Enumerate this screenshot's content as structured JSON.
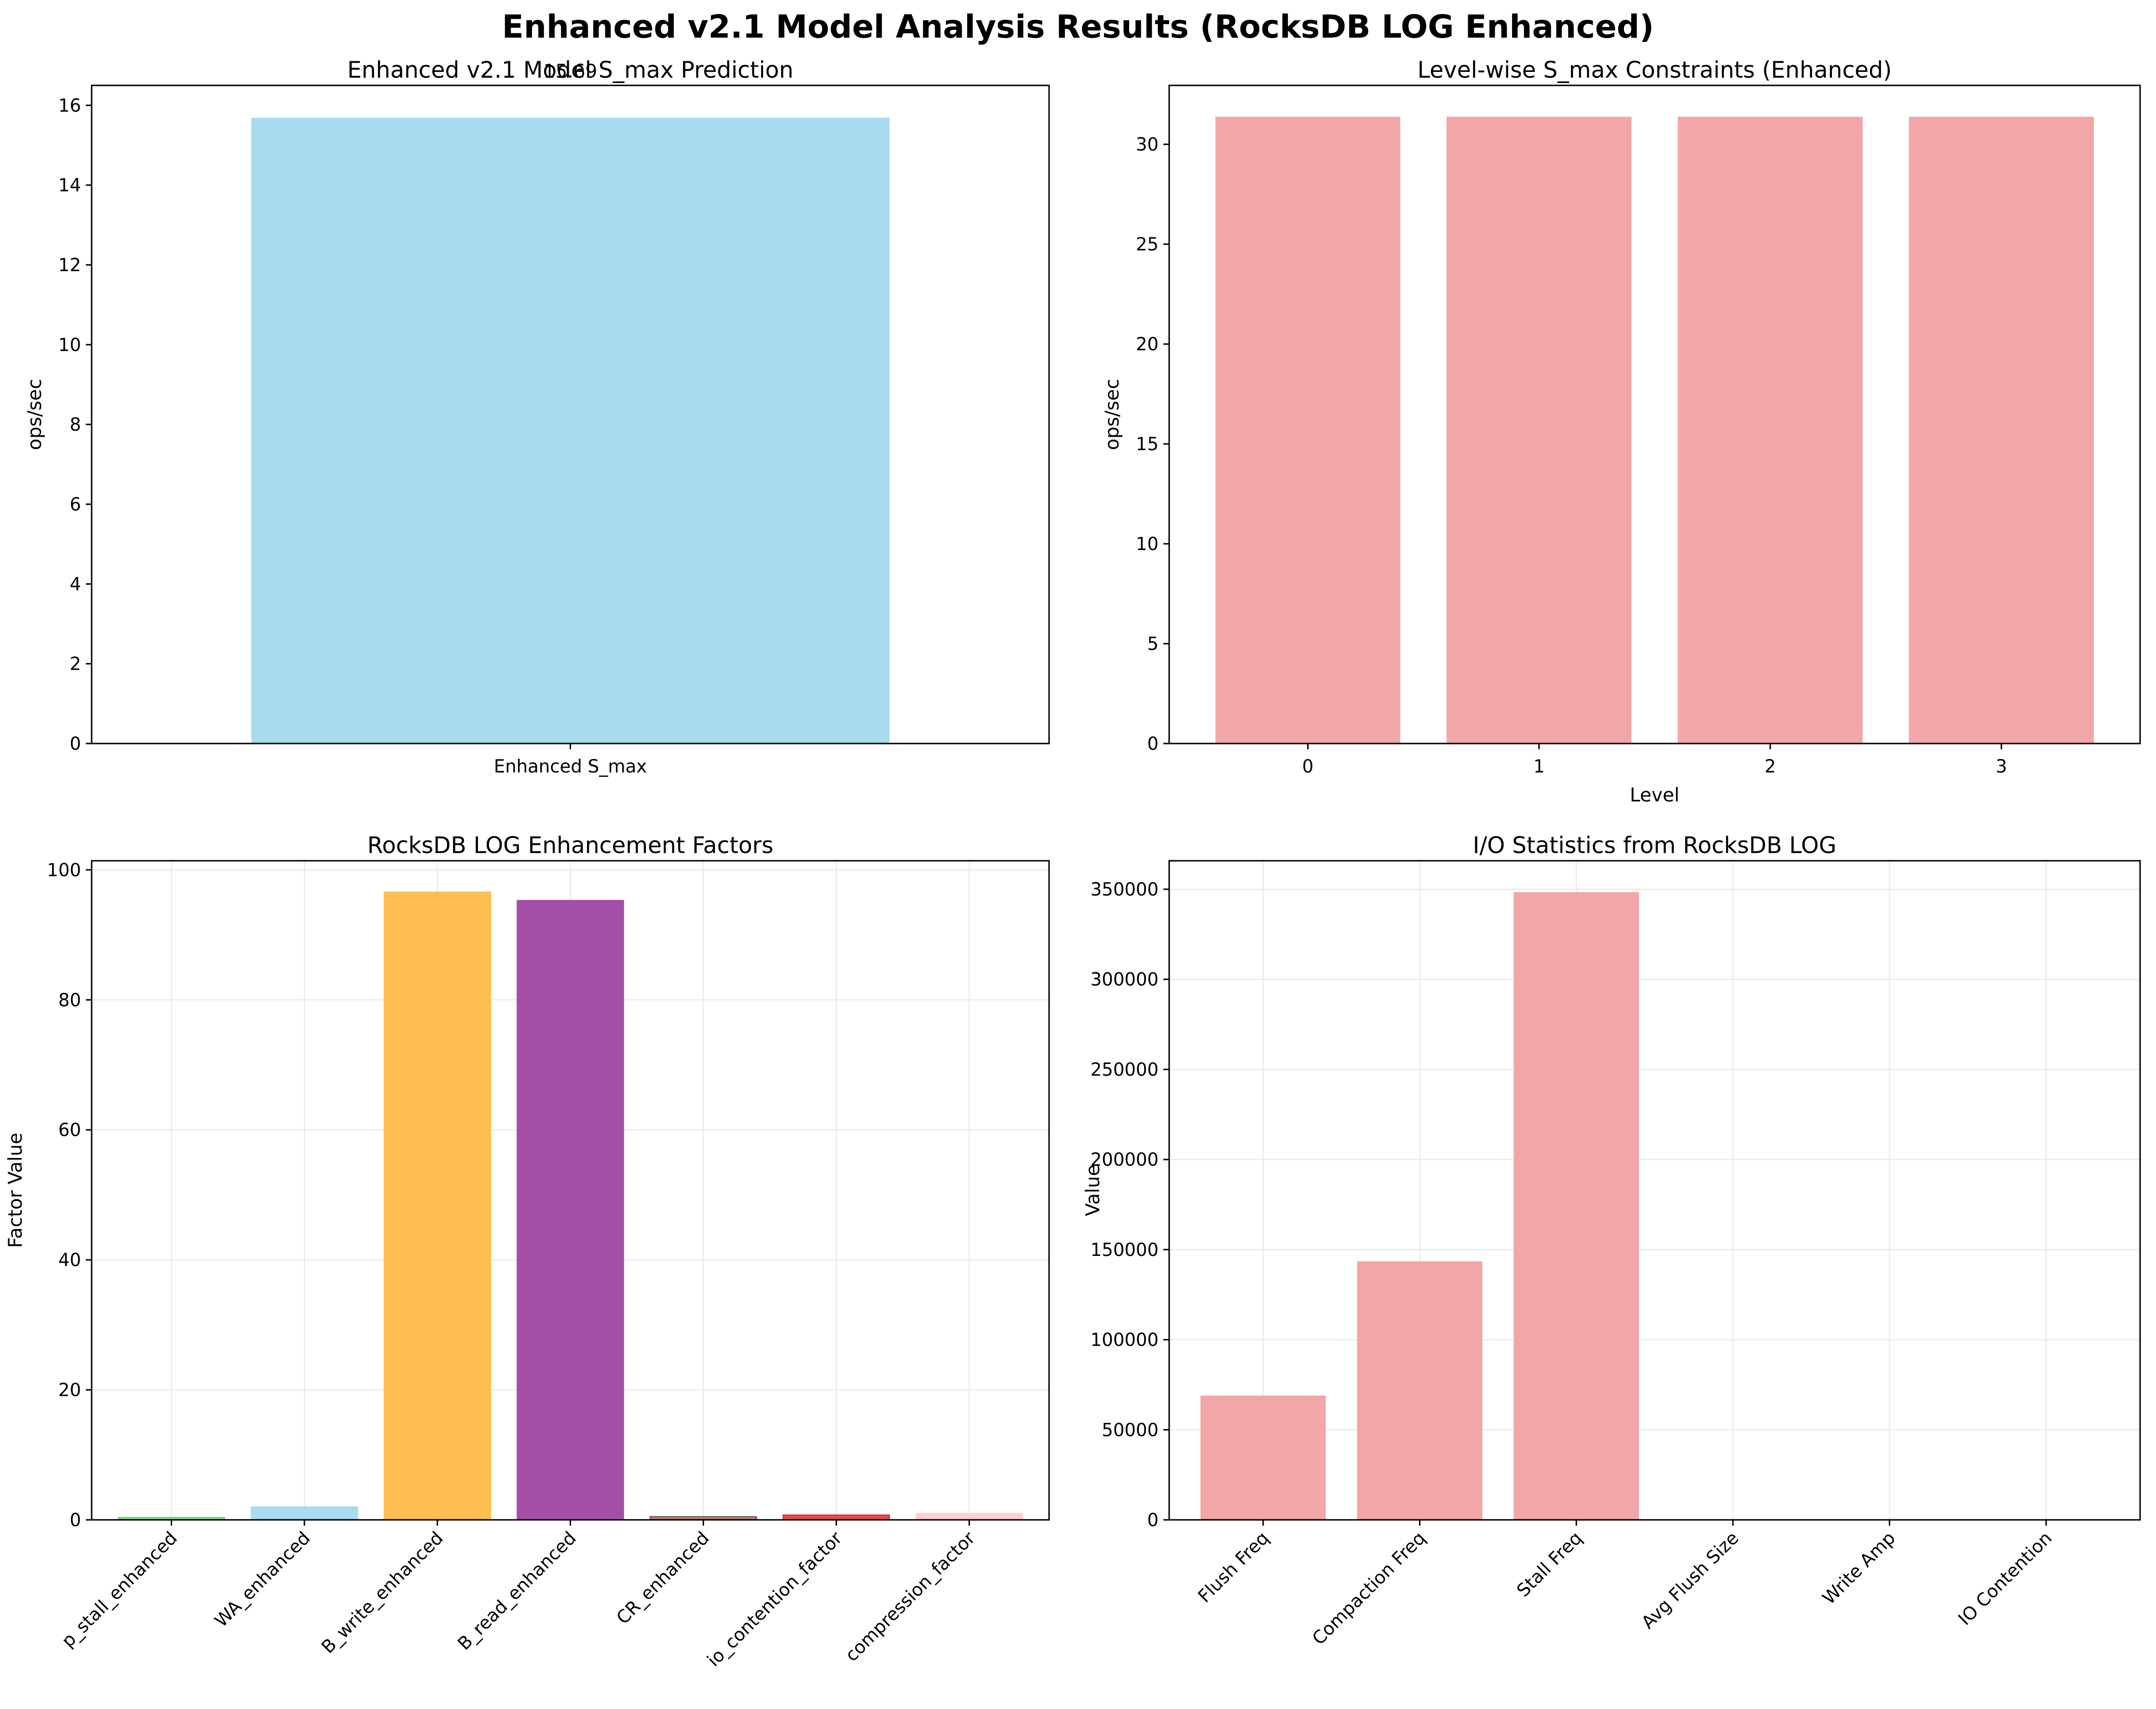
{
  "suptitle": "Enhanced v2.1 Model Analysis Results (RocksDB LOG Enhanced)",
  "chart_data": [
    {
      "type": "bar",
      "title": "Enhanced v2.1 Model S_max Prediction",
      "xlabel": "",
      "ylabel": "ops/sec",
      "categories": [
        "Enhanced S_max"
      ],
      "values": [
        15.69
      ],
      "data_labels": [
        "15.69"
      ],
      "ylim": [
        0,
        16.5
      ],
      "yticks": [
        0,
        2,
        4,
        6,
        8,
        10,
        12,
        14,
        16
      ],
      "grid": false,
      "colors": [
        "#a8dbed"
      ]
    },
    {
      "type": "bar",
      "title": "Level-wise S_max Constraints (Enhanced)",
      "xlabel": "Level",
      "ylabel": "ops/sec",
      "categories": [
        "0",
        "1",
        "2",
        "3"
      ],
      "values": [
        31.38,
        31.38,
        31.38,
        31.38
      ],
      "ylim": [
        0,
        32.95
      ],
      "yticks": [
        0,
        5,
        10,
        15,
        20,
        25,
        30
      ],
      "grid": false,
      "colors": [
        "#f3a6a7",
        "#f3a6a7",
        "#f3a6a7",
        "#f3a6a7"
      ]
    },
    {
      "type": "bar",
      "title": "RocksDB LOG Enhancement Factors",
      "xlabel": "",
      "ylabel": "Factor Value",
      "categories": [
        "p_stall_enhanced",
        "WA_enhanced",
        "B_write_enhanced",
        "B_read_enhanced",
        "CR_enhanced",
        "io_contention_factor",
        "compression_factor"
      ],
      "values": [
        0.4,
        2.0,
        96.6,
        95.3,
        0.5,
        0.75,
        1.0
      ],
      "ylim": [
        0,
        101.4
      ],
      "yticks": [
        0,
        20,
        40,
        60,
        80,
        100
      ],
      "grid": true,
      "colors": [
        "#7ed87e",
        "#a8dbed",
        "#ffbe4f",
        "#a44ea6",
        "#c27a7a",
        "#ee4848",
        "#ffcfd5"
      ],
      "edgecolors": [
        "#7ed87e",
        "#a8dbed",
        "#ffbe4f",
        "#a44ea6",
        "#555555",
        "#c23535",
        "#ffcfd5"
      ]
    },
    {
      "type": "bar",
      "title": "I/O Statistics from RocksDB LOG",
      "xlabel": "",
      "ylabel": "Value",
      "categories": [
        "Flush Freq",
        "Compaction Freq",
        "Stall Freq",
        "Avg Flush Size",
        "Write Amp",
        "IO Contention"
      ],
      "values": [
        69000,
        143500,
        348400,
        0,
        0,
        0
      ],
      "ylim": [
        0,
        365800
      ],
      "yticks": [
        0,
        50000,
        100000,
        150000,
        200000,
        250000,
        300000,
        350000
      ],
      "grid": true,
      "colors": [
        "#f3a6a7",
        "#f3a6a7",
        "#f3a6a7",
        "#f3a6a7",
        "#f3a6a7",
        "#f3a6a7"
      ]
    }
  ]
}
